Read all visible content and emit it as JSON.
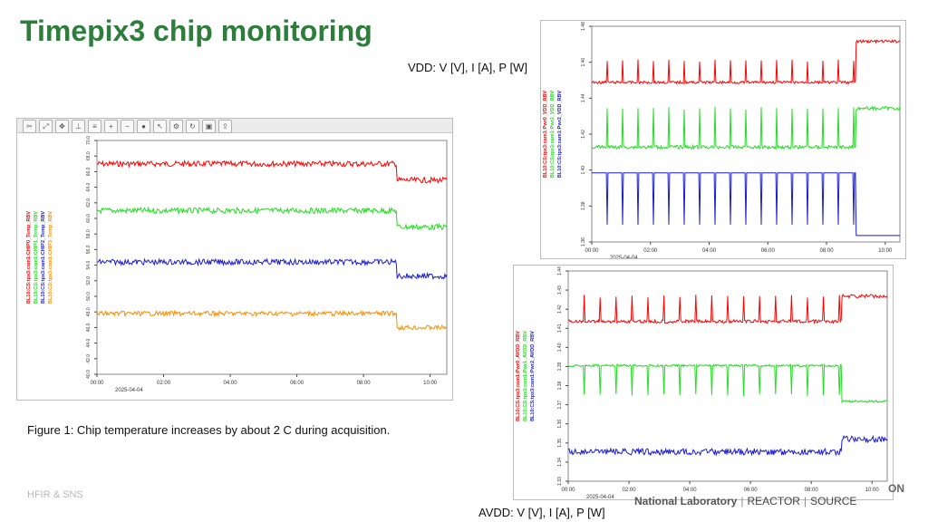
{
  "slide": {
    "title": "Timepix3 chip monitoring",
    "caption_vdd": "VDD: V [V], I [A], P [W]",
    "caption_avdd": "AVDD: V [V], I [A], P [W]",
    "figure_caption": "Figure 1: Chip temperature increases by about 2 C during acquisition.",
    "footer_left": "HFIR & SNS",
    "logo": {
      "lab": "National Laboratory",
      "reactor": "REACTOR",
      "source": "SOURCE",
      "on": "ON"
    }
  },
  "toolbar_icons": [
    "cut-icon",
    "zoom-fit-icon",
    "pan-icon",
    "axis-icon",
    "stack-icon",
    "zoom-in-icon",
    "zoom-out-icon",
    "stop-icon",
    "cursor-icon",
    "config-icon",
    "refresh-icon",
    "save-icon",
    "export-icon"
  ],
  "chart_data": [
    {
      "type": "line",
      "panel": "temperature",
      "x_ticks": [
        "00:00",
        "02:00",
        "04:00",
        "06:00",
        "08:00",
        "10:00"
      ],
      "x_date": "2025-04-04",
      "y_axis_labels": [
        "BL10:CS:tpx3:cam1:CHIP0_Temp_RBV",
        "BL10:CS:tpx3:cam1:CHIP1_Temp_RBV",
        "BL10:CS:tpx3:cam1:CHIP2_Temp_RBV",
        "BL10:CS:tpx3:cam1:CHIP3_Temp_RBV"
      ],
      "y_ticks": [
        "40.0",
        "42.0",
        "44.0",
        "46.0",
        "48.0",
        "50.0",
        "52.0",
        "54.0",
        "56.0",
        "58.0",
        "60.0",
        "62.0",
        "64.0",
        "66.0",
        "68.0",
        "70.0"
      ],
      "step_time_hours": 9.0,
      "series": [
        {
          "color": "#ff0000",
          "before": 0.1,
          "after": 0.17,
          "noise": 0.012
        },
        {
          "color": "#22dd22",
          "before": 0.3,
          "after": 0.37,
          "noise": 0.012
        },
        {
          "color": "#1a1ad8",
          "before": 0.52,
          "after": 0.58,
          "noise": 0.012
        },
        {
          "color": "#ff8c00",
          "before": 0.74,
          "after": 0.8,
          "noise": 0.01
        }
      ]
    },
    {
      "type": "line",
      "panel": "vdd",
      "x_ticks": [
        "00:00",
        "02:00",
        "04:00",
        "06:00",
        "08:00",
        "10:00"
      ],
      "x_date": "2025-04-04",
      "y_axis_labels": [
        "BL10:CS:tpx3:cam1:Pwr0_VDD_RBV",
        "BL10:CS:tpx3:cam1:Pwr2_VDD_RBV",
        "BL10:CS:tpx3:cam1:Pwr2_VDD_RBV"
      ],
      "y_ticks": [
        "1.36",
        "1.38",
        "1.40",
        "1.42",
        "1.44",
        "1.46",
        "1.48"
      ],
      "step_time_hours": 9.0,
      "series": [
        {
          "color": "#ff0000",
          "before": 0.26,
          "after": 0.07,
          "noise": 0.006,
          "spike": -0.1
        },
        {
          "color": "#22dd22",
          "before": 0.56,
          "after": 0.38,
          "noise": 0.008,
          "spike": -0.18
        },
        {
          "color": "#1a1ad8",
          "before": 0.68,
          "after": 0.97,
          "noise": 0.0,
          "spike": 0.24
        }
      ]
    },
    {
      "type": "line",
      "panel": "avdd",
      "x_ticks": [
        "00:00",
        "02:00",
        "04:00",
        "06:00",
        "08:00",
        "10:00"
      ],
      "x_date": "2025-04-04",
      "y_axis_labels": [
        "BL10:CS:tpx3:cam1:Pwr0_AVDD_RBV",
        "BL10:CS:tpx3:cam1:Pwr1_AVDD_RBV",
        "BL10:CS:tpx3:cam1:Pwr2_AVDD_RBV"
      ],
      "y_ticks": [
        "1.33",
        "1.34",
        "1.35",
        "1.36",
        "1.37",
        "1.38",
        "1.39",
        "1.40",
        "1.41",
        "1.42",
        "1.43",
        "1.44"
      ],
      "step_time_hours": 9.0,
      "series": [
        {
          "color": "#ff0000",
          "before": 0.24,
          "after": 0.12,
          "noise": 0.008,
          "spike": -0.12
        },
        {
          "color": "#22dd22",
          "before": 0.45,
          "after": 0.62,
          "noise": 0.005,
          "spike": 0.14
        },
        {
          "color": "#1a1ad8",
          "before": 0.86,
          "after": 0.8,
          "noise": 0.015,
          "spike": 0
        }
      ]
    }
  ]
}
